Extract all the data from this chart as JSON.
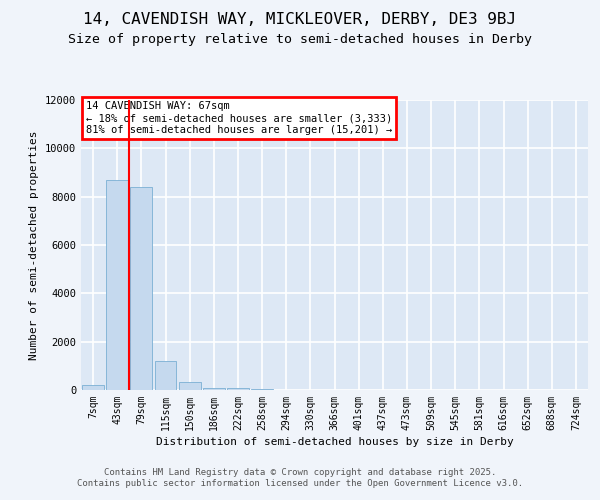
{
  "title_line1": "14, CAVENDISH WAY, MICKLEOVER, DERBY, DE3 9BJ",
  "title_line2": "Size of property relative to semi-detached houses in Derby",
  "xlabel": "Distribution of semi-detached houses by size in Derby",
  "ylabel": "Number of semi-detached properties",
  "bin_labels": [
    "7sqm",
    "43sqm",
    "79sqm",
    "115sqm",
    "150sqm",
    "186sqm",
    "222sqm",
    "258sqm",
    "294sqm",
    "330sqm",
    "366sqm",
    "401sqm",
    "437sqm",
    "473sqm",
    "509sqm",
    "545sqm",
    "581sqm",
    "616sqm",
    "652sqm",
    "688sqm",
    "724sqm"
  ],
  "bin_values": [
    190,
    8700,
    8400,
    1200,
    340,
    95,
    65,
    45,
    0,
    0,
    0,
    0,
    0,
    0,
    0,
    0,
    0,
    0,
    0,
    0,
    0
  ],
  "bar_color": "#c5d9ee",
  "bar_edge_color": "#7bafd4",
  "annotation_text": "14 CAVENDISH WAY: 67sqm\n← 18% of semi-detached houses are smaller (3,333)\n81% of semi-detached houses are larger (15,201) →",
  "ylim_max": 12000,
  "yticks": [
    0,
    2000,
    4000,
    6000,
    8000,
    10000,
    12000
  ],
  "footer_line1": "Contains HM Land Registry data © Crown copyright and database right 2025.",
  "footer_line2": "Contains public sector information licensed under the Open Government Licence v3.0.",
  "bg_color": "#dde8f5",
  "grid_color": "#ffffff",
  "fig_bg": "#f0f4fa"
}
